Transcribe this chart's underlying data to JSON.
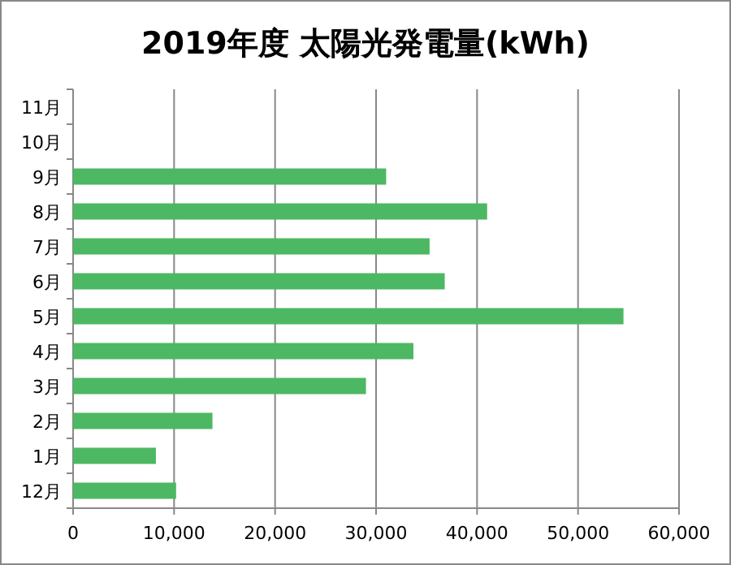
{
  "chart_data": {
    "type": "bar",
    "orientation": "horizontal",
    "title": "2019年度 太陽光発電量(kWh)",
    "categories": [
      "11月",
      "10月",
      "9月",
      "8月",
      "7月",
      "6月",
      "5月",
      "4月",
      "3月",
      "2月",
      "1月",
      "12月"
    ],
    "values": [
      null,
      null,
      31000,
      41000,
      35300,
      36800,
      54500,
      33700,
      29000,
      13800,
      8200,
      10200
    ],
    "color": "#4db863",
    "xlim": [
      0,
      60000
    ],
    "xticks": [
      0,
      {
        "value": 10000,
        "label": "10,000"
      },
      {
        "value": 20000,
        "label": "20,000"
      },
      {
        "value": 30000,
        "label": "30,000"
      },
      {
        "value": 40000,
        "label": "40,000"
      },
      {
        "value": 50000,
        "label": "50,000"
      },
      {
        "value": 60000,
        "label": "60,000"
      }
    ],
    "grid": "x"
  }
}
